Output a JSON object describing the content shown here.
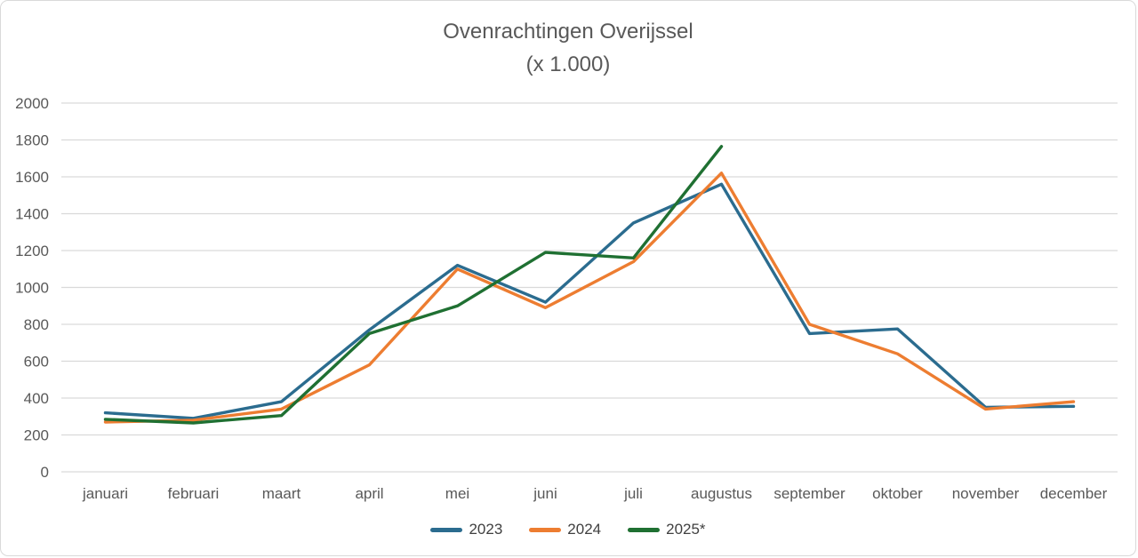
{
  "title": {
    "line1": "Ovenrachtingen Overijssel",
    "line2": "(x 1.000)"
  },
  "colors": {
    "background": "#ffffff",
    "grid": "#d9d9d9",
    "axis_text": "#595959",
    "legend_text": "#404040",
    "frame_border": "#d9d9d9"
  },
  "chart_data": {
    "type": "line",
    "title": "Ovenrachtingen Overijssel",
    "subtitle": "(x 1.000)",
    "categories": [
      "januari",
      "februari",
      "maart",
      "april",
      "mei",
      "juni",
      "juli",
      "augustus",
      "september",
      "oktober",
      "november",
      "december"
    ],
    "series": [
      {
        "name": "2023",
        "color": "#2B6C8F",
        "values": [
          320,
          290,
          380,
          770,
          1120,
          920,
          1350,
          1560,
          750,
          775,
          350,
          355
        ]
      },
      {
        "name": "2024",
        "color": "#ED7D31",
        "values": [
          270,
          280,
          340,
          580,
          1100,
          890,
          1140,
          1620,
          800,
          640,
          340,
          380
        ]
      },
      {
        "name": "2025*",
        "color": "#1F7032",
        "values": [
          285,
          265,
          305,
          750,
          900,
          1190,
          1160,
          1765,
          null,
          null,
          null,
          null
        ]
      }
    ],
    "ylim": [
      0,
      2000
    ],
    "ytick_step": 200,
    "ytick_labels": [
      "0",
      "200",
      "400",
      "600",
      "800",
      "1000",
      "1200",
      "1400",
      "1600",
      "1800",
      "2000"
    ],
    "grid": true,
    "legend_position": "bottom",
    "xlabel": "",
    "ylabel": ""
  }
}
